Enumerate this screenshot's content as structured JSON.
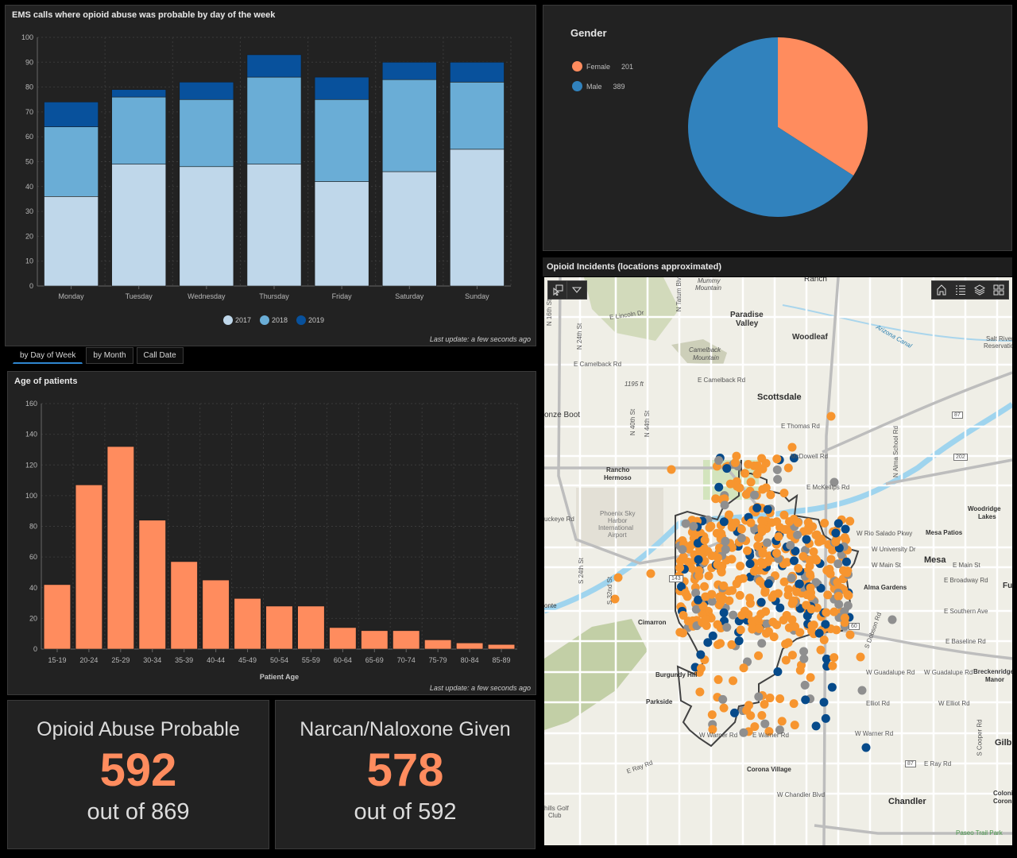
{
  "dow_panel": {
    "title": "EMS calls where opioid abuse was probable by day of the week",
    "last_update": "Last update: a few seconds ago"
  },
  "tabs": [
    {
      "label": "by Day of Week",
      "active": true
    },
    {
      "label": "by Month",
      "active": false
    },
    {
      "label": "Call Date",
      "active": false
    }
  ],
  "age_panel": {
    "title": "Age of patients",
    "last_update": "Last update: a few seconds ago"
  },
  "gender_panel": {
    "title": "Gender",
    "legend": [
      {
        "label": "Female",
        "value": "201",
        "color": "#ff8c5e"
      },
      {
        "label": "Male",
        "value": "389",
        "color": "#3182bd"
      }
    ]
  },
  "indicators": [
    {
      "title": "Opioid Abuse Probable",
      "value": "592",
      "sub": "out of 869"
    },
    {
      "title": "Narcan/Naloxone Given",
      "value": "578",
      "sub": "out of 592"
    }
  ],
  "map_panel": {
    "title": "Opioid Incidents (locations approximated)",
    "tools_left": [
      "select-icon",
      "dropdown-icon"
    ],
    "tools_right": [
      "home-icon",
      "legend-list-icon",
      "layers-icon",
      "basemap-gallery-icon"
    ],
    "labels": {
      "mummy": "Mummy",
      "mountain1": "Mountain",
      "ranch": "Ranch",
      "paradise": "Paradise",
      "valley": "Valley",
      "lincoln": "E Lincoln Dr",
      "sixteenth": "N 16th St",
      "twentyfourth_n": "N 24th St",
      "tatum": "N Tatum Blvd",
      "camelback_mtn": "Camelback",
      "mountain2": "Mountain",
      "camelback_rd1": "E Camelback Rd",
      "camelback_rd2": "E Camelback Rd",
      "elev": "1195 ft",
      "woodleaf": "Woodleaf",
      "arizona_canal": "Arizona Canal",
      "salt_river1": "Salt River",
      "salt_river2": "Reservation",
      "scottsdale": "Scottsdale",
      "bronze_boot": "onze Boot",
      "fortyfourth": "N 44th St",
      "fortieth": "N 40th St",
      "thomas": "E Thomas Rd",
      "alma_school": "N Alma School Rd",
      "mcdowell": "McDowell Rd",
      "rancho1": "Rancho",
      "rancho2": "Hermoso",
      "mckellips": "E McKellips Rd",
      "buckeye": "uckeye Rd",
      "airport1": "Phoenix Sky",
      "airport2": "Harbor",
      "airport3": "International",
      "airport4": "Airport",
      "woodridge1": "Woodridge",
      "woodridge2": "Lakes",
      "mesa_patios": "Mesa Patios",
      "rio_salado": "W Rio Salado Pkwy",
      "university": "W University Dr",
      "mesa": "Mesa",
      "w_main": "W Main St",
      "e_main": "E Main St",
      "broadway": "E Broadway Rd",
      "full": "Full",
      "alma_gardens": "Alma Gardens",
      "monte": "onte",
      "thirtysecond": "S 32nd St",
      "twentyfourth_s": "S 24th St",
      "cimarron": "Cimarron",
      "southern": "E Southern Ave",
      "hw60": "60",
      "hw87a": "87",
      "hw202": "202",
      "hw143": "143",
      "hw87b": "87",
      "dobson": "S Dobson Rd",
      "baseline": "E Baseline Rd",
      "burgundy": "Burgundy Hill",
      "guadalupe1": "W Guadalupe Rd",
      "guadalupe2": "W Guadalupe Rd",
      "breckenridge1": "Breckenridge",
      "breckenridge2": "Manor",
      "parkside": "Parkside",
      "elliot1": "Elliot Rd",
      "elliot2": "W Elliot Rd",
      "warner1": "W Warner Rd",
      "warner2": "W Warner Rd",
      "warner3": "E Warner Rd",
      "gilbert": "Gilb",
      "cooper": "S Cooper Rd",
      "ray1": "E Ray Rd",
      "ray2": "E Ray Rd",
      "corona": "Corona Village",
      "chandler_blvd": "W Chandler Blvd",
      "chandler": "Chandler",
      "colonial1": "Colonial",
      "colonial2": "Coronita",
      "golf1": "hills Golf",
      "golf2": "Club",
      "paseo": "Paseo Trail Park"
    },
    "point_colors": {
      "opioid": "#f7952f",
      "narcan": "#064a8a",
      "other": "#8f8f8f"
    }
  },
  "chart_data": [
    {
      "type": "bar",
      "stacked": true,
      "title": "EMS calls where opioid abuse was probable by day of the week",
      "categories": [
        "Monday",
        "Tuesday",
        "Wednesday",
        "Thursday",
        "Friday",
        "Saturday",
        "Sunday"
      ],
      "series": [
        {
          "name": "2017",
          "color": "#bfd7ea",
          "values": [
            36,
            49,
            48,
            49,
            42,
            46,
            55
          ]
        },
        {
          "name": "2018",
          "color": "#6aadd6",
          "values": [
            28,
            27,
            27,
            35,
            33,
            37,
            27
          ]
        },
        {
          "name": "2019",
          "color": "#08519c",
          "values": [
            10,
            3,
            7,
            9,
            9,
            7,
            8
          ]
        }
      ],
      "xlabel": "",
      "ylabel": "",
      "ylim": [
        0,
        100
      ],
      "yticks": [
        0,
        10,
        20,
        30,
        40,
        50,
        60,
        70,
        80,
        90,
        100
      ],
      "grid": true,
      "legend": "bottom"
    },
    {
      "type": "bar",
      "title": "Age of patients",
      "categories": [
        "15-19",
        "20-24",
        "25-29",
        "30-34",
        "35-39",
        "40-44",
        "45-49",
        "50-54",
        "55-59",
        "60-64",
        "65-69",
        "70-74",
        "75-79",
        "80-84",
        "85-89"
      ],
      "values": [
        42,
        107,
        132,
        84,
        57,
        45,
        33,
        28,
        28,
        14,
        12,
        12,
        6,
        4,
        3
      ],
      "color": "#ff8c5e",
      "xlabel": "Patient Age",
      "ylabel": "",
      "ylim": [
        0,
        160
      ],
      "yticks": [
        0,
        20,
        40,
        60,
        80,
        100,
        120,
        140,
        160
      ],
      "grid": true
    },
    {
      "type": "pie",
      "title": "Gender",
      "categories": [
        "Female",
        "Male"
      ],
      "values": [
        201,
        389
      ],
      "colors": [
        "#ff8c5e",
        "#3182bd"
      ],
      "legend": "top-left"
    }
  ]
}
